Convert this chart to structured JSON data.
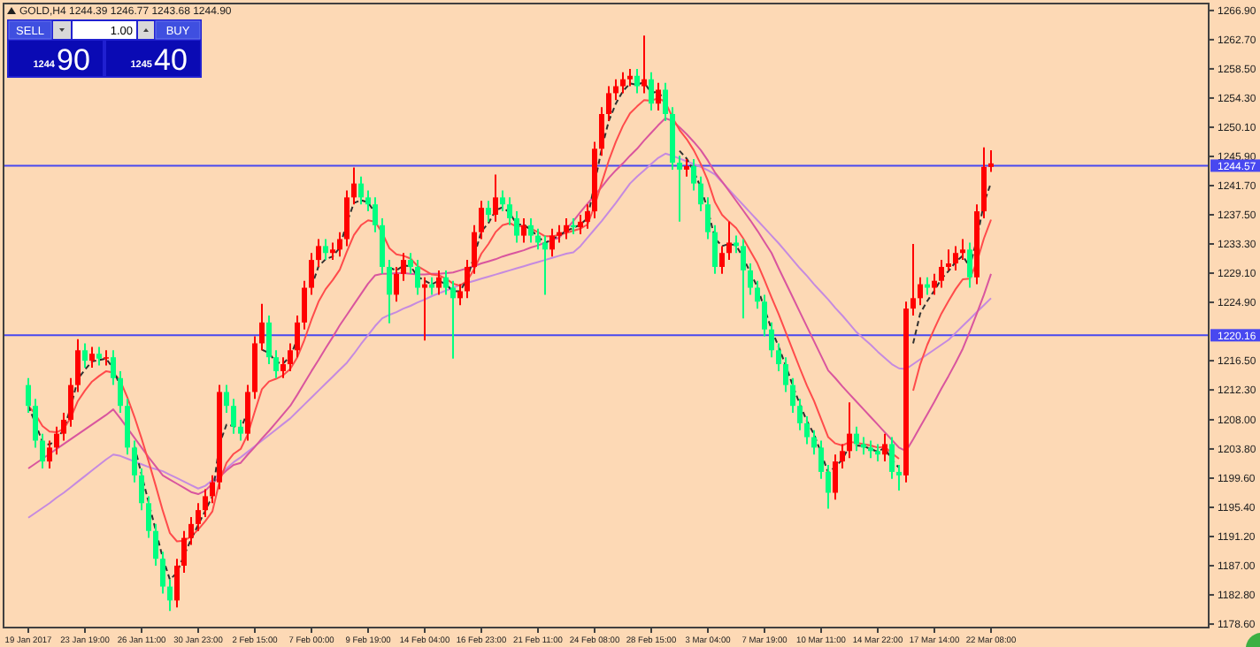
{
  "chart_data": {
    "type": "candlestick",
    "title": "GOLD,H4 1244.39 1246.77 1243.68 1244.90",
    "categories": [
      "19 Jan 2017",
      null,
      null,
      null,
      null,
      null,
      null,
      null,
      "23 Jan 19:00",
      null,
      null,
      null,
      null,
      null,
      null,
      null,
      "26 Jan 11:00",
      null,
      null,
      null,
      null,
      null,
      null,
      null,
      "30 Jan 23:00",
      null,
      null,
      null,
      null,
      null,
      null,
      null,
      "2 Feb 15:00",
      null,
      null,
      null,
      null,
      null,
      null,
      null,
      "7 Feb 00:00",
      null,
      null,
      null,
      null,
      null,
      null,
      null,
      "9 Feb 19:00",
      null,
      null,
      null,
      null,
      null,
      null,
      null,
      "14 Feb 04:00",
      null,
      null,
      null,
      null,
      null,
      null,
      null,
      "16 Feb 23:00",
      null,
      null,
      null,
      null,
      null,
      null,
      null,
      "21 Feb 11:00",
      null,
      null,
      null,
      null,
      null,
      null,
      null,
      "24 Feb 08:00",
      null,
      null,
      null,
      null,
      null,
      null,
      null,
      "28 Feb 15:00",
      null,
      null,
      null,
      null,
      null,
      null,
      null,
      "3 Mar 04:00",
      null,
      null,
      null,
      null,
      null,
      null,
      null,
      "7 Mar 19:00",
      null,
      null,
      null,
      null,
      null,
      null,
      null,
      "10 Mar 11:00",
      null,
      null,
      null,
      null,
      null,
      null,
      null,
      "14 Mar 22:00",
      null,
      null,
      null,
      null,
      null,
      null,
      null,
      "17 Mar 14:00",
      null,
      null,
      null,
      null,
      null,
      null,
      null,
      "22 Mar 08:00"
    ],
    "ohlc": [
      [
        1213,
        1214,
        1209,
        1210
      ],
      [
        1210,
        1211,
        1204,
        1205
      ],
      [
        1205,
        1206,
        1201,
        1202
      ],
      [
        1202,
        1205,
        1201,
        1204
      ],
      [
        1204,
        1207,
        1203,
        1206
      ],
      [
        1206,
        1209,
        1205,
        1208
      ],
      [
        1208,
        1214,
        1207,
        1213
      ],
      [
        1213,
        1219.6,
        1212,
        1218
      ],
      [
        1218,
        1219,
        1215.5,
        1216.5
      ],
      [
        1216.5,
        1218.5,
        1215.5,
        1217.5
      ],
      [
        1217.5,
        1218.5,
        1215.8,
        1216.8
      ],
      [
        1216.8,
        1218,
        1215.8,
        1217
      ],
      [
        1217,
        1218,
        1213,
        1214
      ],
      [
        1214,
        1215,
        1209,
        1210
      ],
      [
        1210,
        1211,
        1203,
        1204
      ],
      [
        1204,
        1205,
        1199,
        1200
      ],
      [
        1200,
        1201,
        1195,
        1196
      ],
      [
        1196,
        1197,
        1191,
        1192
      ],
      [
        1192,
        1193,
        1187,
        1188
      ],
      [
        1188,
        1189,
        1183,
        1184
      ],
      [
        1184,
        1185,
        1180.5,
        1182
      ],
      [
        1182,
        1188,
        1181,
        1187
      ],
      [
        1187,
        1192,
        1186,
        1191
      ],
      [
        1191,
        1194,
        1190,
        1193
      ],
      [
        1193,
        1196,
        1192,
        1195
      ],
      [
        1195,
        1198,
        1194,
        1197
      ],
      [
        1197,
        1200,
        1196,
        1199
      ],
      [
        1199,
        1213,
        1198,
        1212
      ],
      [
        1212,
        1213,
        1209,
        1210
      ],
      [
        1210,
        1211,
        1206,
        1207
      ],
      [
        1207,
        1208,
        1205,
        1206
      ],
      [
        1206,
        1213,
        1205,
        1212
      ],
      [
        1212,
        1220,
        1211,
        1219
      ],
      [
        1219,
        1224.7,
        1218,
        1222
      ],
      [
        1222,
        1223,
        1216,
        1217
      ],
      [
        1217,
        1218,
        1214,
        1215
      ],
      [
        1215,
        1217,
        1214,
        1216
      ],
      [
        1216,
        1219,
        1215,
        1218
      ],
      [
        1218,
        1223,
        1217,
        1222
      ],
      [
        1222,
        1228,
        1221,
        1227
      ],
      [
        1227,
        1232,
        1226,
        1231
      ],
      [
        1231,
        1234,
        1230,
        1233
      ],
      [
        1233,
        1234,
        1231,
        1232
      ],
      [
        1232,
        1233.5,
        1231,
        1232.5
      ],
      [
        1232.5,
        1235,
        1231.5,
        1234
      ],
      [
        1234,
        1241,
        1233,
        1240
      ],
      [
        1240,
        1244.3,
        1239,
        1242
      ],
      [
        1242,
        1243,
        1239,
        1240
      ],
      [
        1240,
        1241,
        1238,
        1239
      ],
      [
        1239,
        1240,
        1235,
        1236
      ],
      [
        1236,
        1237,
        1229,
        1230
      ],
      [
        1230,
        1231,
        1221.9,
        1226
      ],
      [
        1226,
        1230,
        1225,
        1229
      ],
      [
        1229,
        1232,
        1228,
        1231
      ],
      [
        1231,
        1232,
        1229,
        1230
      ],
      [
        1230,
        1231,
        1226,
        1227
      ],
      [
        1227,
        1228.5,
        1219.4,
        1227.5
      ],
      [
        1227.5,
        1228.5,
        1226,
        1227
      ],
      [
        1227,
        1229.5,
        1226,
        1228.5
      ],
      [
        1228.5,
        1229.5,
        1226,
        1227
      ],
      [
        1227,
        1228,
        1216.8,
        1225.5
      ],
      [
        1225.5,
        1227.5,
        1224.5,
        1226.5
      ],
      [
        1226.5,
        1231,
        1225.5,
        1230
      ],
      [
        1230,
        1236,
        1229,
        1235
      ],
      [
        1235,
        1239.5,
        1234,
        1238.5
      ],
      [
        1238.5,
        1239.5,
        1236.5,
        1237.5
      ],
      [
        1237.5,
        1243.3,
        1236.5,
        1240
      ],
      [
        1240,
        1241,
        1238,
        1239
      ],
      [
        1239,
        1240,
        1236,
        1237
      ],
      [
        1237,
        1238,
        1233.5,
        1234.5
      ],
      [
        1234.5,
        1237,
        1233.5,
        1236
      ],
      [
        1236,
        1237,
        1233.5,
        1234.5
      ],
      [
        1234.5,
        1235.5,
        1232.5,
        1233.5
      ],
      [
        1233.5,
        1234.5,
        1226,
        1232.5
      ],
      [
        1232.5,
        1235.5,
        1231.5,
        1234.5
      ],
      [
        1234.5,
        1236,
        1233.5,
        1235
      ],
      [
        1235,
        1237,
        1234,
        1236
      ],
      [
        1236,
        1237,
        1234.7,
        1235.7
      ],
      [
        1235.7,
        1237.5,
        1234.7,
        1236.5
      ],
      [
        1236.5,
        1239,
        1235.5,
        1238
      ],
      [
        1238,
        1248,
        1237,
        1247
      ],
      [
        1247,
        1253,
        1246,
        1252
      ],
      [
        1252,
        1256,
        1251,
        1255
      ],
      [
        1255,
        1257,
        1254,
        1256
      ],
      [
        1256,
        1258,
        1255,
        1257
      ],
      [
        1257,
        1258.5,
        1256,
        1257.5
      ],
      [
        1257.5,
        1258.5,
        1255,
        1256
      ],
      [
        1256,
        1263.3,
        1255,
        1257
      ],
      [
        1257,
        1258,
        1252.5,
        1253.5
      ],
      [
        1253.5,
        1256.5,
        1252.5,
        1255.5
      ],
      [
        1255.5,
        1256.5,
        1251,
        1252
      ],
      [
        1252,
        1253,
        1244,
        1245
      ],
      [
        1245,
        1246,
        1236.5,
        1244
      ],
      [
        1244,
        1245.5,
        1243,
        1244.5
      ],
      [
        1244.5,
        1245.5,
        1241,
        1242
      ],
      [
        1242,
        1243,
        1238,
        1239
      ],
      [
        1239,
        1240,
        1234,
        1235
      ],
      [
        1235,
        1236,
        1229,
        1230
      ],
      [
        1230,
        1233,
        1229,
        1232
      ],
      [
        1232,
        1236.5,
        1231,
        1233.5
      ],
      [
        1233.5,
        1234.5,
        1232,
        1233
      ],
      [
        1233,
        1234,
        1222.6,
        1229.5
      ],
      [
        1229.5,
        1230.5,
        1226,
        1227
      ],
      [
        1227,
        1228,
        1224,
        1225
      ],
      [
        1225,
        1226,
        1220,
        1221
      ],
      [
        1221,
        1222,
        1217,
        1218
      ],
      [
        1218,
        1219,
        1215,
        1216
      ],
      [
        1216,
        1217,
        1212,
        1213
      ],
      [
        1213,
        1214,
        1209,
        1210
      ],
      [
        1210,
        1211,
        1206.5,
        1207.5
      ],
      [
        1207.5,
        1208.5,
        1204.5,
        1205.5
      ],
      [
        1205.5,
        1206.5,
        1203,
        1204
      ],
      [
        1204,
        1205,
        1199.5,
        1200.5
      ],
      [
        1200.5,
        1201.5,
        1195.2,
        1197.5
      ],
      [
        1197.5,
        1203,
        1196.5,
        1202
      ],
      [
        1202,
        1204.5,
        1201,
        1203.5
      ],
      [
        1203.5,
        1210.5,
        1202.5,
        1206
      ],
      [
        1206,
        1207,
        1203.5,
        1204.5
      ],
      [
        1204.5,
        1205.5,
        1203,
        1204
      ],
      [
        1204,
        1205,
        1202.5,
        1203.5
      ],
      [
        1203.5,
        1204.5,
        1202,
        1203
      ],
      [
        1203,
        1206,
        1202,
        1204.5
      ],
      [
        1204.5,
        1205.5,
        1199.5,
        1200.5
      ],
      [
        1200.5,
        1201.5,
        1197.8,
        1200
      ],
      [
        1200,
        1225,
        1199,
        1224
      ],
      [
        1224,
        1233.3,
        1223,
        1225.5
      ],
      [
        1225.5,
        1228.5,
        1224.5,
        1227.5
      ],
      [
        1227.5,
        1228.5,
        1226,
        1227
      ],
      [
        1227,
        1229,
        1226,
        1228
      ],
      [
        1228,
        1231,
        1227,
        1230
      ],
      [
        1230,
        1232.5,
        1229.5,
        1230.5
      ],
      [
        1230.5,
        1233,
        1229.5,
        1232
      ],
      [
        1232,
        1234,
        1231,
        1232.5
      ],
      [
        1232.5,
        1233.5,
        1227,
        1228.5
      ],
      [
        1228.5,
        1239,
        1227.5,
        1238
      ],
      [
        1238,
        1247.2,
        1237,
        1244.39
      ],
      [
        1244.39,
        1246.77,
        1243.68,
        1244.9
      ]
    ],
    "colors": [
      "#00ff80",
      "#00ff80",
      "#00ff80",
      "#ff0000",
      "#ff0000",
      "#ff0000",
      "#ff0000",
      "#ff0000",
      "#00ff80",
      "#ff0000",
      "#00ff80",
      "#ff0000",
      "#00ff80",
      "#00ff80",
      "#00ff80",
      "#00ff80",
      "#00ff80",
      "#00ff80",
      "#00ff80",
      "#00ff80",
      "#00ff80",
      "#ff0000",
      "#ff0000",
      "#ff0000",
      "#ff0000",
      "#ff0000",
      "#ff0000",
      "#ff0000",
      "#00ff80",
      "#00ff80",
      "#00ff80",
      "#ff0000",
      "#ff0000",
      "#ff0000",
      "#00ff80",
      "#00ff80",
      "#ff0000",
      "#ff0000",
      "#ff0000",
      "#ff0000",
      "#ff0000",
      "#ff0000",
      "#00ff80",
      "#ff0000",
      "#ff0000",
      "#ff0000",
      "#ff0000",
      "#00ff80",
      "#00ff80",
      "#00ff80",
      "#00ff80",
      "#00ff80",
      "#ff0000",
      "#ff0000",
      "#00ff80",
      "#00ff80",
      "#ff0000",
      "#00ff80",
      "#ff0000",
      "#00ff80",
      "#00ff80",
      "#ff0000",
      "#ff0000",
      "#ff0000",
      "#ff0000",
      "#00ff80",
      "#ff0000",
      "#00ff80",
      "#00ff80",
      "#00ff80",
      "#ff0000",
      "#00ff80",
      "#00ff80",
      "#00ff80",
      "#ff0000",
      "#ff0000",
      "#ff0000",
      "#00ff80",
      "#ff0000",
      "#ff0000",
      "#ff0000",
      "#ff0000",
      "#ff0000",
      "#ff0000",
      "#ff0000",
      "#ff0000",
      "#00ff80",
      "#ff0000",
      "#00ff80",
      "#ff0000",
      "#00ff80",
      "#00ff80",
      "#00ff80",
      "#ff0000",
      "#00ff80",
      "#00ff80",
      "#00ff80",
      "#00ff80",
      "#ff0000",
      "#ff0000",
      "#00ff80",
      "#00ff80",
      "#00ff80",
      "#00ff80",
      "#00ff80",
      "#00ff80",
      "#00ff80",
      "#00ff80",
      "#00ff80",
      "#00ff80",
      "#00ff80",
      "#00ff80",
      "#00ff80",
      "#00ff80",
      "#ff0000",
      "#ff0000",
      "#ff0000",
      "#00ff80",
      "#00ff80",
      "#00ff80",
      "#00ff80",
      "#ff0000",
      "#00ff80",
      "#00ff80",
      "#ff0000",
      "#ff0000",
      "#ff0000",
      "#00ff80",
      "#ff0000",
      "#ff0000",
      "#ff0000",
      "#ff0000",
      "#ff0000",
      "#00ff80",
      "#ff0000",
      "#ff0000",
      "#ff0000"
    ],
    "series": [
      {
        "type": "line",
        "color": "#c58ae0",
        "values": [
          1193.9,
          1194.6,
          1195.3,
          1196.0,
          1196.8,
          1197.5,
          1198.3,
          1199.1,
          1199.9,
          1200.7,
          1201.5,
          1202.3,
          1203.0,
          1202.8,
          1202.4,
          1202.0,
          1201.6,
          1201.2,
          1200.9,
          1200.6,
          1200.1,
          1199.6,
          1199.1,
          1198.6,
          1198.1,
          1198.5,
          1199.3,
          1200.2,
          1201.0,
          1201.9,
          1202.6,
          1203.4,
          1204.2,
          1205.0,
          1205.8,
          1206.6,
          1207.4,
          1208.2,
          1209.2,
          1210.2,
          1211.2,
          1212.2,
          1213.2,
          1214.2,
          1215.2,
          1216.2,
          1217.5,
          1218.9,
          1220.2,
          1221.5,
          1222.6,
          1223.1,
          1223.5,
          1224.0,
          1224.4,
          1224.9,
          1225.3,
          1225.8,
          1226.2,
          1226.6,
          1227.0,
          1227.4,
          1227.7,
          1228.0,
          1228.3,
          1228.6,
          1228.9,
          1229.2,
          1229.5,
          1229.8,
          1230.1,
          1230.4,
          1230.7,
          1231.0,
          1231.3,
          1231.6,
          1231.9,
          1232.1,
          1233.0,
          1234.2,
          1235.4,
          1236.6,
          1237.9,
          1239.2,
          1240.6,
          1242.0,
          1243.0,
          1243.9,
          1244.8,
          1245.7,
          1246.3,
          1246.0,
          1245.6,
          1245.2,
          1244.8,
          1244.4,
          1243.9,
          1243.3,
          1242.2,
          1241.1,
          1240.0,
          1238.9,
          1237.8,
          1236.7,
          1235.6,
          1234.5,
          1233.4,
          1232.2,
          1231.0,
          1229.8,
          1228.7,
          1227.5,
          1226.4,
          1225.3,
          1224.1,
          1223.0,
          1221.8,
          1220.6,
          1219.7,
          1218.8,
          1217.8,
          1216.9,
          1216.0,
          1215.4,
          1215.3,
          1216.0,
          1216.7,
          1217.4,
          1218.1,
          1218.8,
          1219.5,
          1220.5,
          1221.5,
          1222.5,
          1223.5,
          1224.5,
          1225.5
        ]
      },
      {
        "type": "line",
        "color": "#d9559e",
        "values": [
          1201.0,
          1201.7,
          1202.4,
          1203.1,
          1203.8,
          1204.5,
          1205.2,
          1205.9,
          1206.6,
          1207.3,
          1208.0,
          1208.7,
          1209.5,
          1208.2,
          1206.8,
          1205.4,
          1204.0,
          1202.6,
          1201.3,
          1200.0,
          1199.4,
          1198.8,
          1198.2,
          1197.6,
          1197.3,
          1197.8,
          1198.8,
          1199.8,
          1200.7,
          1201.5,
          1201.8,
          1203.0,
          1204.1,
          1205.3,
          1206.4,
          1207.6,
          1208.8,
          1210.0,
          1211.6,
          1213.3,
          1215.0,
          1216.6,
          1218.3,
          1219.9,
          1221.6,
          1223.1,
          1224.6,
          1226.1,
          1227.6,
          1228.8,
          1229.0,
          1229.0,
          1229.1,
          1229.1,
          1229.0,
          1228.9,
          1228.9,
          1229.0,
          1229.0,
          1229.1,
          1229.2,
          1229.5,
          1229.8,
          1230.1,
          1230.5,
          1230.8,
          1231.1,
          1231.5,
          1231.8,
          1232.1,
          1232.4,
          1232.8,
          1233.1,
          1233.5,
          1233.9,
          1234.2,
          1235.4,
          1236.6,
          1237.9,
          1239.1,
          1240.3,
          1241.5,
          1242.8,
          1243.9,
          1244.9,
          1246.0,
          1247.0,
          1248.2,
          1249.3,
          1250.4,
          1251.4,
          1251.0,
          1250.1,
          1249.1,
          1248.0,
          1246.8,
          1245.3,
          1243.6,
          1242.3,
          1240.9,
          1239.5,
          1238.1,
          1236.7,
          1235.2,
          1233.6,
          1232.0,
          1229.8,
          1227.7,
          1225.6,
          1223.5,
          1221.4,
          1219.3,
          1217.2,
          1215.1,
          1214.0,
          1212.8,
          1211.7,
          1210.6,
          1209.5,
          1208.4,
          1207.3,
          1206.2,
          1205.1,
          1204.0,
          1203.5,
          1205.2,
          1207.0,
          1208.8,
          1210.6,
          1212.5,
          1214.3,
          1216.2,
          1218.2,
          1220.7,
          1223.3,
          1226.0,
          1229.0
        ]
      },
      {
        "type": "line",
        "color": "#ff4b4b",
        "values": [
          1210.0,
          1208.8,
          1207.1,
          1206.3,
          1206.2,
          1206.7,
          1208.3,
          1210.7,
          1212.2,
          1213.5,
          1214.3,
          1215.0,
          1214.8,
          1213.6,
          1211.2,
          1208.4,
          1205.3,
          1202.0,
          1198.5,
          1194.9,
          1191.7,
          1190.5,
          1190.6,
          1191.2,
          1192.2,
          1193.4,
          1194.8,
          1199.1,
          1201.8,
          1203.1,
          1203.8,
          1205.9,
          1209.2,
          1212.4,
          1213.5,
          1213.9,
          1214.4,
          1215.3,
          1217.0,
          1219.5,
          1222.4,
          1225.0,
          1226.8,
          1228.1,
          1229.6,
          1232.2,
          1234.6,
          1236.0,
          1236.7,
          1236.5,
          1234.9,
          1232.7,
          1231.8,
          1231.6,
          1231.2,
          1230.1,
          1229.5,
          1228.9,
          1228.8,
          1228.3,
          1227.6,
          1227.3,
          1228.0,
          1229.7,
          1231.9,
          1233.3,
          1235.0,
          1236.0,
          1236.3,
          1235.8,
          1235.9,
          1235.5,
          1235.0,
          1234.4,
          1234.4,
          1234.6,
          1234.9,
          1235.2,
          1235.5,
          1236.1,
          1238.8,
          1242.1,
          1245.3,
          1248.0,
          1250.3,
          1252.1,
          1253.1,
          1254.0,
          1253.9,
          1254.3,
          1253.7,
          1251.5,
          1249.7,
          1248.4,
          1246.8,
          1244.8,
          1242.4,
          1239.3,
          1237.5,
          1236.5,
          1235.6,
          1234.1,
          1232.3,
          1230.5,
          1228.1,
          1225.6,
          1223.2,
          1220.6,
          1218.0,
          1215.4,
          1212.9,
          1210.7,
          1208.1,
          1205.5,
          1204.6,
          1204.3,
          1204.8,
          1204.7,
          1204.5,
          1204.3,
          1204.0,
          1204.1,
          1203.2,
          1202.4,
          null,
          1212.2,
          1216.0,
          1218.8,
          1221.1,
          1223.3,
          1225.1,
          1226.8,
          1228.2,
          1228.3,
          1230.7,
          1234.1,
          1236.8
        ]
      },
      {
        "type": "line",
        "color": "#303030",
        "line_style": "dashed",
        "values": [
          1210.0,
          1207.5,
          1204.8,
          1204.4,
          1205.2,
          1206.6,
          1209.8,
          1213.9,
          1215.2,
          1216.4,
          1216.6,
          1216.8,
          1215.4,
          1212.7,
          null,
          1204.2,
          1200.1,
          1196.1,
          1192.1,
          1188.1,
          1185.0,
          1186.0,
          1188.5,
          1190.8,
          1192.9,
          1194.9,
          1197.0,
          1204.5,
          1207.3,
          1207.1,
          1206.6,
          1209.3,
          null,
          1218.1,
          1217.6,
          1216.3,
          1216.1,
          1217.1,
          1219.6,
          null,
          1227.1,
          1230.1,
          1231.1,
          1231.5,
          1232.8,
          1236.4,
          1239.2,
          1239.6,
          1239.3,
          1237.7,
          null,
          1229.9,
          1229.5,
          1230.2,
          1230.1,
          1228.6,
          1228.0,
          1227.5,
          1228.0,
          1227.5,
          1226.5,
          1226.5,
          1228.3,
          1231.6,
          1235.1,
          1236.3,
          1238.1,
          1238.6,
          1237.8,
          1236.1,
          1236.1,
          1235.3,
          1234.4,
          1233.4,
          1234.0,
          1234.5,
          1235.2,
          1235.6,
          1236.1,
          1237.0,
          1242.0,
          1247.0,
          1251.0,
          1253.5,
          1255.3,
          1256.4,
          1256.2,
          1256.6,
          1255.0,
          1255.3,
          1253.6,
          null,
          1246.7,
          1245.6,
          1243.8,
          1241.4,
          1238.2,
          1234.1,
          1233.0,
          1233.3,
          1233.1,
          1231.3,
          1229.2,
          1227.1,
          1224.0,
          1221.0,
          1218.5,
          1215.8,
          1212.9,
          1210.2,
          1207.8,
          1205.9,
          1203.2,
          1200.4,
          1201.2,
          1202.3,
          1204.2,
          1204.3,
          1204.2,
          1203.8,
          1203.4,
          1204.0,
          1202.2,
          1201.1,
          null,
          1219.0,
          1223.3,
          1225.1,
          1226.6,
          1228.3,
          1229.4,
          1230.7,
          1231.6,
          1230.0,
          1234.0,
          1239.2,
          1242.1
        ]
      }
    ],
    "ylim": [
      1178.1,
      1267.9
    ],
    "yticks": [
      {
        "value": 1266.9,
        "label": "1266.90"
      },
      {
        "value": 1262.7,
        "label": "1262.70"
      },
      {
        "value": 1258.5,
        "label": "1258.50"
      },
      {
        "value": 1254.3,
        "label": "1254.30"
      },
      {
        "value": 1250.1,
        "label": "1250.10"
      },
      {
        "value": 1245.9,
        "label": "1245.90"
      },
      {
        "value": 1241.7,
        "label": "1241.70"
      },
      {
        "value": 1237.5,
        "label": "1237.50"
      },
      {
        "value": 1233.3,
        "label": "1233.30"
      },
      {
        "value": 1229.1,
        "label": "1229.10"
      },
      {
        "value": 1224.9,
        "label": "1224.90"
      },
      {
        "value": 1216.5,
        "label": "1216.50"
      },
      {
        "value": 1212.3,
        "label": "1212.30"
      },
      {
        "value": 1208,
        "label": "1208.00"
      },
      {
        "value": 1203.8,
        "label": "1203.80"
      },
      {
        "value": 1199.6,
        "label": "1199.60"
      },
      {
        "value": 1195.4,
        "label": "1195.40"
      },
      {
        "value": 1191.2,
        "label": "1191.20"
      },
      {
        "value": 1187,
        "label": "1187.00"
      },
      {
        "value": 1182.8,
        "label": "1182.80"
      },
      {
        "value": 1178.6,
        "label": "1178.60"
      }
    ],
    "ref_lines": [
      {
        "axis": "y",
        "value": 1244.57,
        "label": "1244.57",
        "color": "#4848f0"
      },
      {
        "axis": "y",
        "value": 1220.16,
        "label": "1220.16",
        "color": "#4848f0"
      }
    ],
    "annotations": [
      "SELL",
      "BUY",
      "1.00",
      "1244",
      "90",
      "1245",
      "40"
    ]
  }
}
